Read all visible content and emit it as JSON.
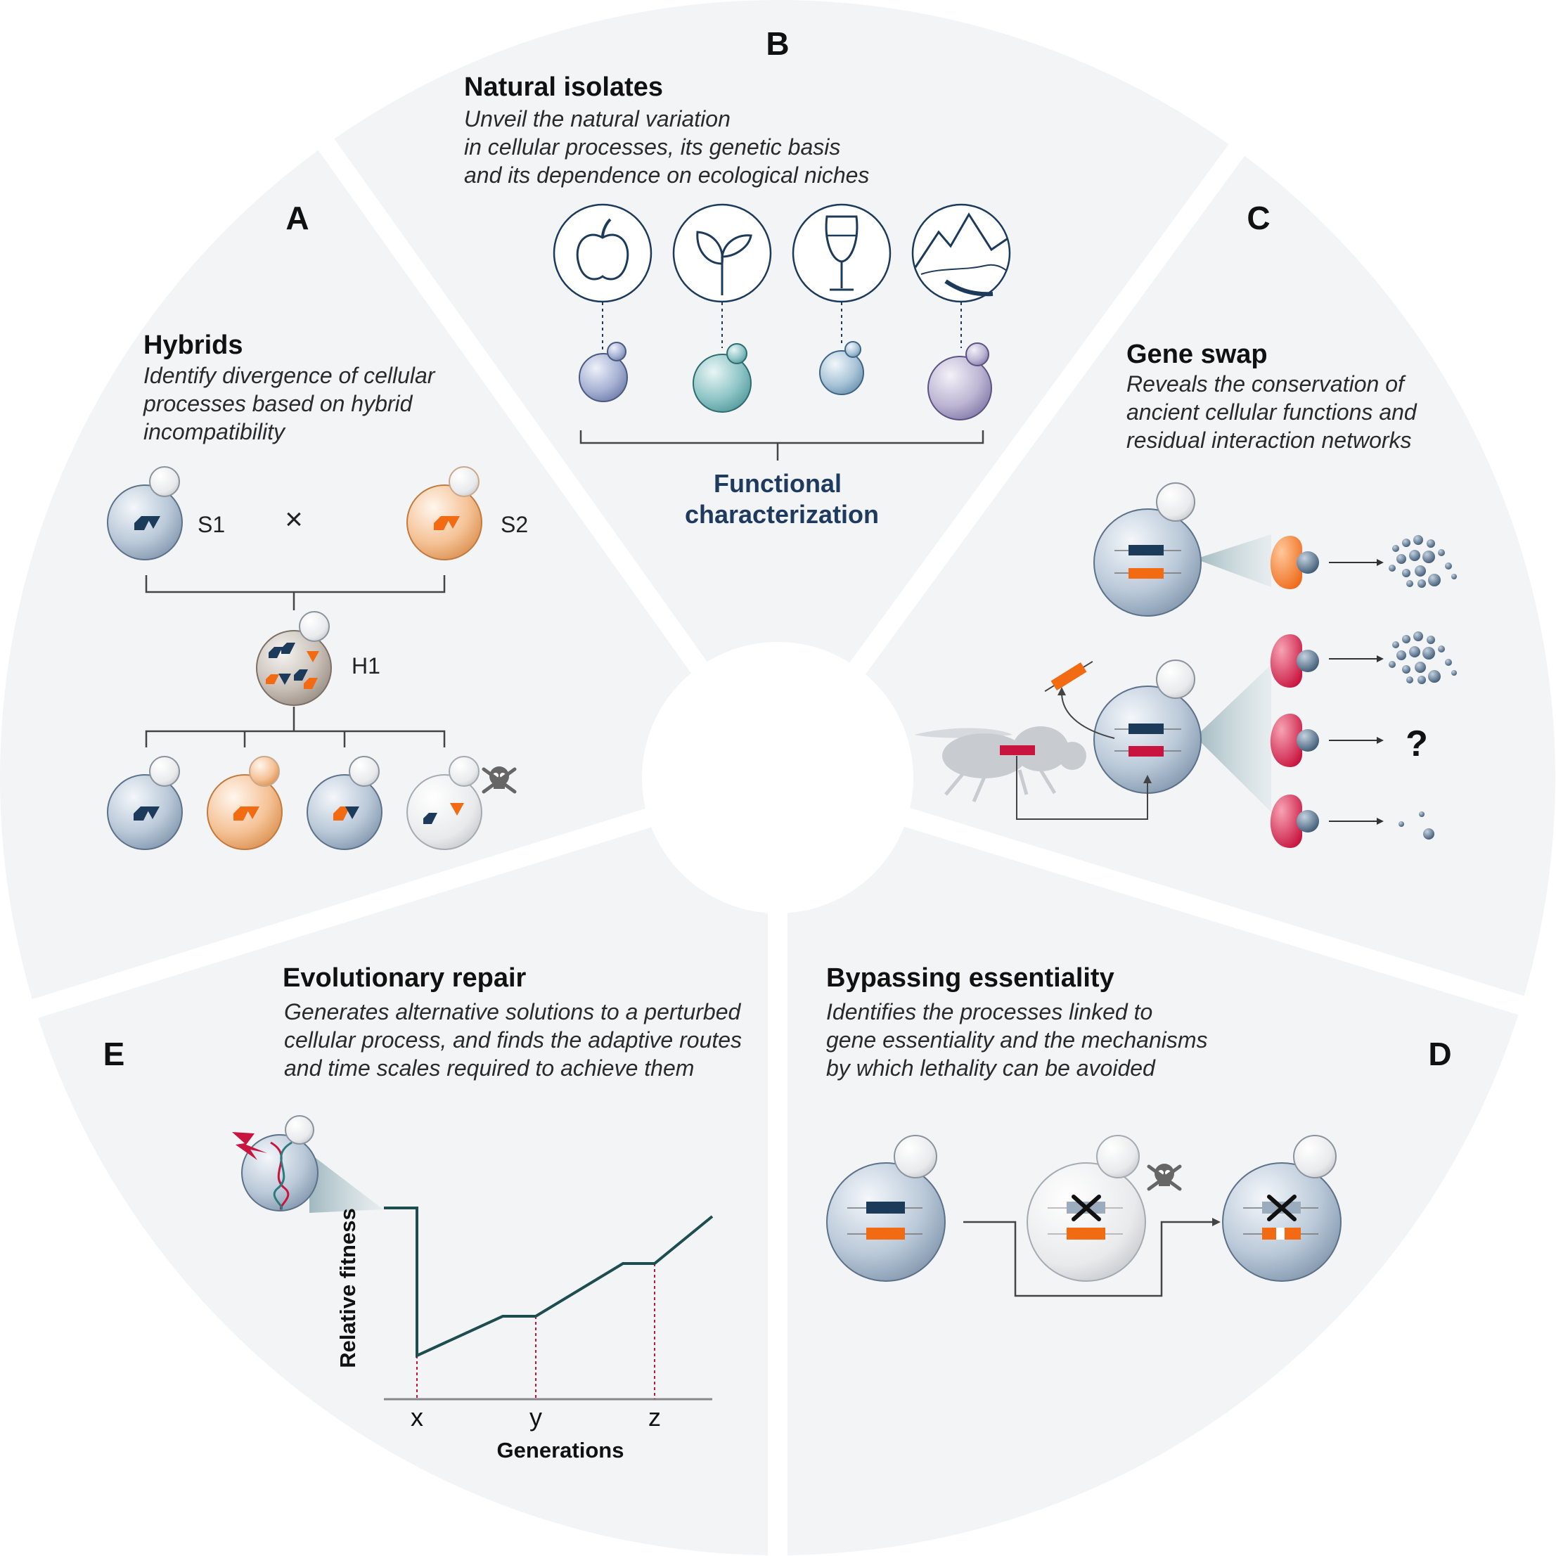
{
  "panels": {
    "A": {
      "letter": "A",
      "title": "Hybrids",
      "desc": [
        "Identify divergence of cellular",
        "processes based on hybrid",
        "incompatibility"
      ],
      "labels": {
        "s1": "S1",
        "cross": "×",
        "s2": "S2",
        "h1": "H1"
      }
    },
    "B": {
      "letter": "B",
      "title": "Natural isolates",
      "desc": [
        "Unveil the natural variation",
        "in cellular processes, its genetic basis",
        "and its dependence on ecological niches"
      ],
      "icons": [
        "apple-icon",
        "sprout-icon",
        "wine-glass-icon",
        "mountain-icon"
      ],
      "footer": [
        "Functional",
        "characterization"
      ]
    },
    "C": {
      "letter": "C",
      "title": "Gene swap",
      "desc": [
        "Reveals the conservation of",
        "ancient cellular functions and",
        "residual interaction networks"
      ],
      "unknown": "?"
    },
    "D": {
      "letter": "D",
      "title": "Bypassing essentiality",
      "desc": [
        "Identifies the processes linked to",
        "gene essentiality and the mechanisms",
        "by which lethality can be avoided"
      ]
    },
    "E": {
      "letter": "E",
      "title": "Evolutionary repair",
      "desc": [
        "Generates alternative solutions to a perturbed",
        "cellular process, and finds the adaptive routes",
        "and time scales required to achieve them"
      ]
    }
  },
  "chart_data": {
    "type": "line",
    "xlabel": "Generations",
    "ylabel": "Relative fitness",
    "tick_labels": [
      "x",
      "y",
      "z"
    ],
    "colors": {
      "line": "#1d4d4f",
      "markers": "#c0143c",
      "axis": "#888888"
    }
  },
  "colors": {
    "panel_bg": "#f3f4f6",
    "navy": "#1c3a5a",
    "orange": "#f26a12",
    "crimson": "#c8143e",
    "pink": "#d9415f",
    "teal": "#1d4d4f"
  }
}
